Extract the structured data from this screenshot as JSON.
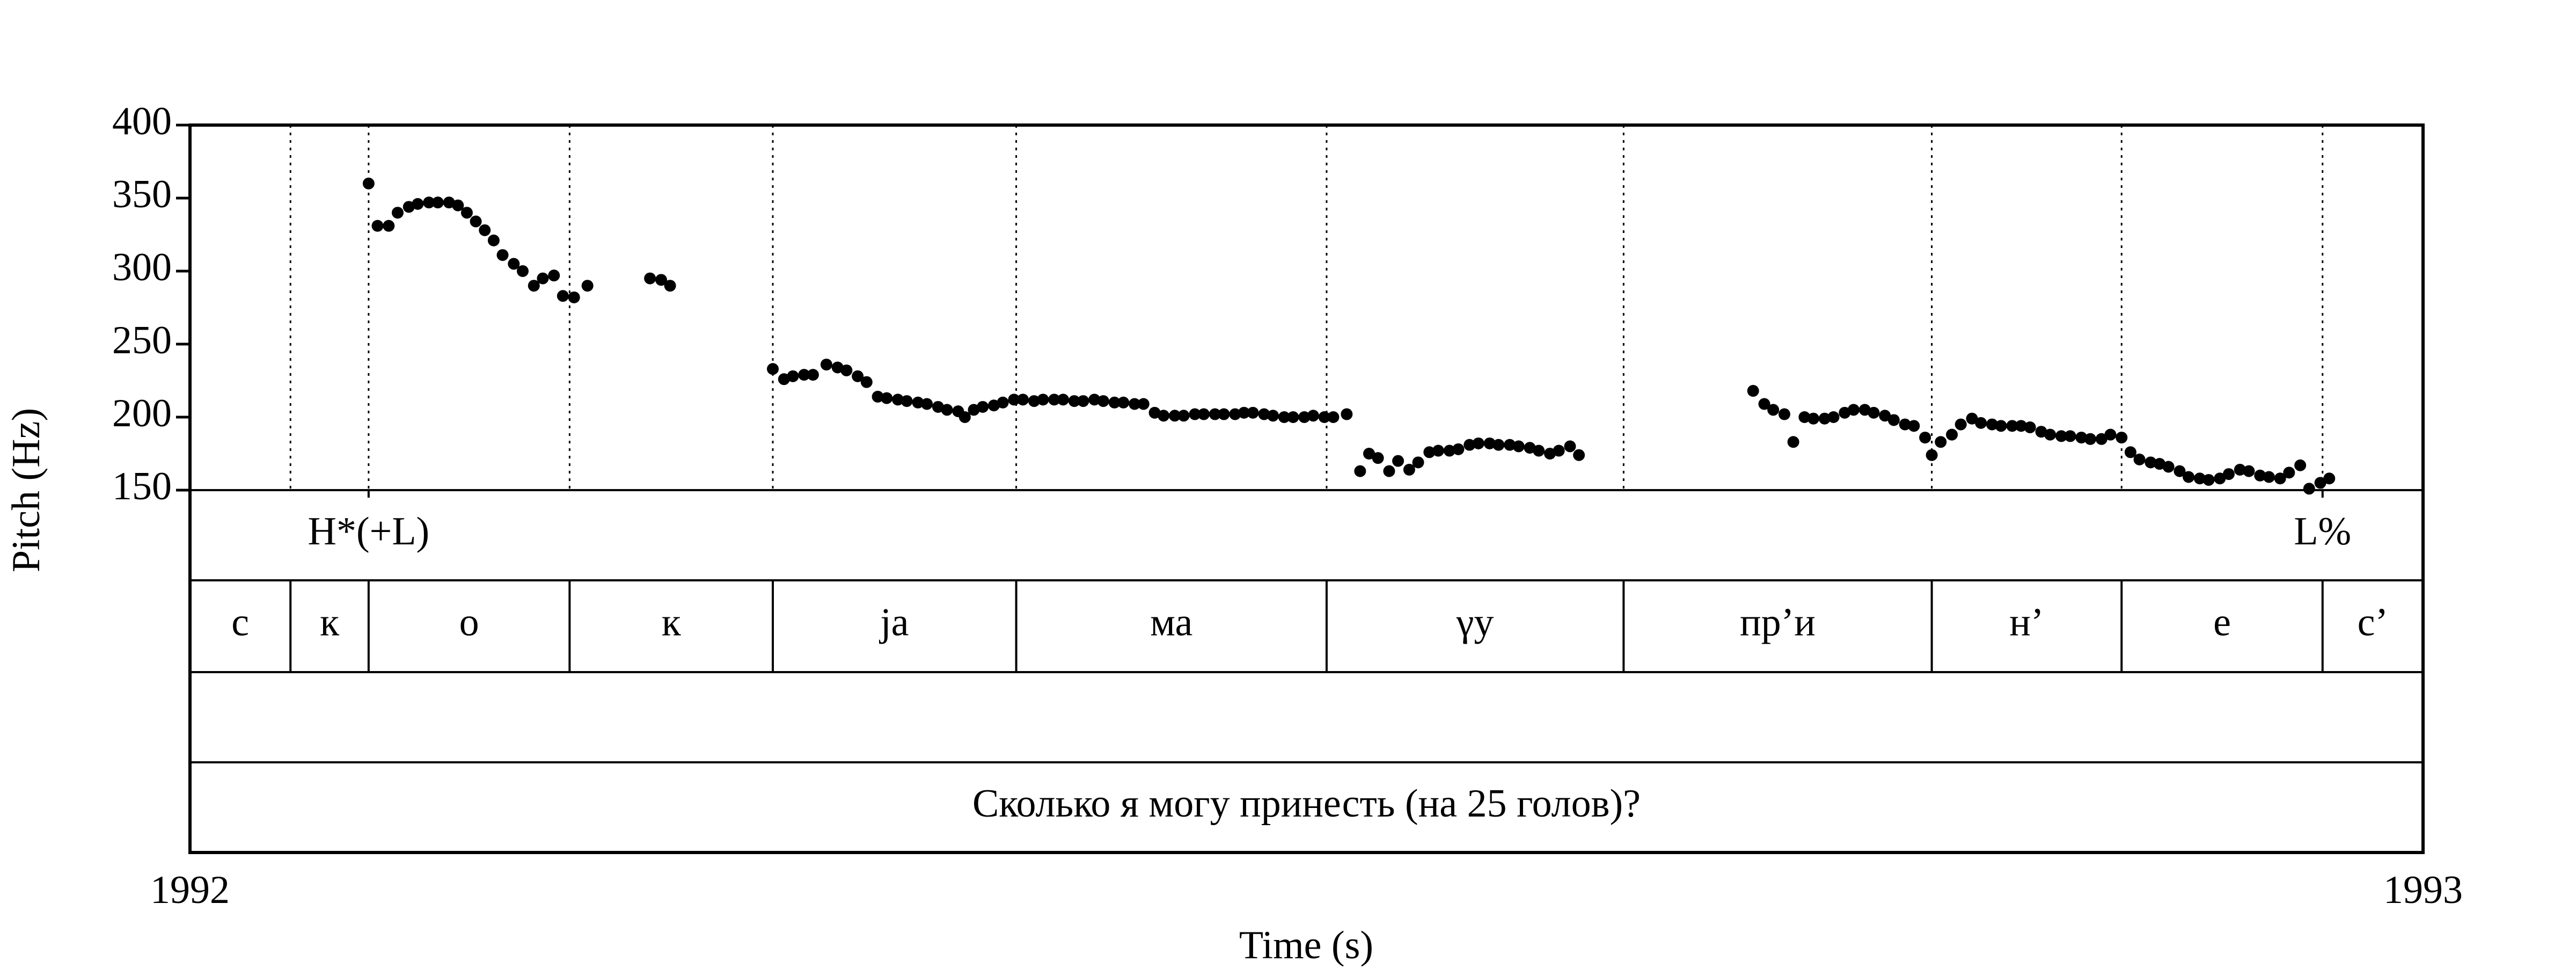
{
  "chart_data": {
    "type": "scatter",
    "xlabel": "Time (s)",
    "ylabel": "Pitch (Hz)",
    "xlim": [
      1992,
      1993
    ],
    "xticks": [
      1992,
      1993
    ],
    "ylim": [
      150,
      400
    ],
    "yticks": [
      150,
      200,
      250,
      300,
      350,
      400
    ],
    "color": "#000000",
    "x": [
      1992.08,
      1992.084,
      1992.089,
      1992.093,
      1992.098,
      1992.102,
      1992.107,
      1992.111,
      1992.116,
      1992.12,
      1992.124,
      1992.128,
      1992.132,
      1992.136,
      1992.14,
      1992.145,
      1992.149,
      1992.154,
      1992.158,
      1992.163,
      1992.167,
      1992.172,
      1992.178,
      1992.206,
      1992.211,
      1992.215,
      1992.261,
      1992.266,
      1992.27,
      1992.275,
      1992.279,
      1992.285,
      1992.29,
      1992.294,
      1992.299,
      1992.303,
      1992.308,
      1992.312,
      1992.317,
      1992.321,
      1992.326,
      1992.33,
      1992.335,
      1992.339,
      1992.344,
      1992.347,
      1992.351,
      1992.355,
      1992.36,
      1992.364,
      1992.369,
      1992.373,
      1992.378,
      1992.382,
      1992.387,
      1992.391,
      1992.396,
      1992.4,
      1992.405,
      1992.409,
      1992.414,
      1992.418,
      1992.423,
      1992.427,
      1992.432,
      1992.436,
      1992.441,
      1992.445,
      1992.45,
      1992.454,
      1992.459,
      1992.463,
      1992.468,
      1992.472,
      1992.476,
      1992.481,
      1992.485,
      1992.49,
      1992.494,
      1992.499,
      1992.503,
      1992.508,
      1992.512,
      1992.518,
      1992.524,
      1992.528,
      1992.532,
      1992.537,
      1992.541,
      1992.546,
      1992.55,
      1992.555,
      1992.559,
      1992.564,
      1992.568,
      1992.573,
      1992.577,
      1992.582,
      1992.586,
      1992.591,
      1992.595,
      1992.6,
      1992.604,
      1992.609,
      1992.613,
      1992.618,
      1992.622,
      1992.7,
      1992.705,
      1992.709,
      1992.714,
      1992.718,
      1992.723,
      1992.727,
      1992.732,
      1992.736,
      1992.741,
      1992.745,
      1992.75,
      1992.754,
      1992.759,
      1992.763,
      1992.768,
      1992.772,
      1992.777,
      1992.78,
      1992.784,
      1992.789,
      1992.793,
      1992.798,
      1992.802,
      1992.807,
      1992.811,
      1992.816,
      1992.82,
      1992.824,
      1992.829,
      1992.833,
      1992.838,
      1992.842,
      1992.847,
      1992.851,
      1992.856,
      1992.86,
      1992.865,
      1992.869,
      1992.873,
      1992.878,
      1992.882,
      1992.886,
      1992.891,
      1992.895,
      1992.9,
      1992.904,
      1992.909,
      1992.913,
      1992.918,
      1992.922,
      1992.927,
      1992.931,
      1992.936,
      1992.94,
      1992.945,
      1992.949,
      1992.954,
      1992.958
    ],
    "values": [
      360,
      331,
      331,
      340,
      344,
      346,
      347,
      347,
      347,
      345,
      340,
      334,
      328,
      321,
      311,
      305,
      300,
      290,
      295,
      297,
      283,
      282,
      290,
      295,
      294,
      290,
      233,
      226,
      228,
      229,
      229,
      236,
      234,
      232,
      228,
      224,
      214,
      213,
      212,
      211,
      210,
      209,
      207,
      205,
      204,
      200,
      205,
      207,
      208,
      210,
      212,
      212,
      211,
      212,
      212,
      212,
      211,
      211,
      212,
      211,
      210,
      210,
      209,
      209,
      203,
      201,
      201,
      201,
      202,
      202,
      202,
      202,
      202,
      203,
      203,
      202,
      201,
      200,
      200,
      200,
      201,
      200,
      200,
      202,
      163,
      175,
      172,
      163,
      170,
      164,
      169,
      176,
      177,
      177,
      178,
      181,
      182,
      182,
      181,
      181,
      180,
      179,
      177,
      175,
      177,
      180,
      174,
      218,
      209,
      205,
      202,
      183,
      200,
      199,
      199,
      200,
      203,
      205,
      205,
      203,
      201,
      198,
      195,
      194,
      186,
      174,
      183,
      188,
      195,
      199,
      196,
      195,
      194,
      194,
      194,
      193,
      190,
      188,
      187,
      187,
      186,
      185,
      185,
      188,
      186,
      176,
      171,
      169,
      168,
      166,
      163,
      159,
      158,
      157,
      158,
      161,
      164,
      163,
      160,
      159,
      158,
      162,
      167,
      151,
      155,
      158
    ],
    "tiers": [
      {
        "times": [
          1992.08,
          1992.955
        ],
        "labels": [
          "H*(+L)",
          "L%"
        ]
      },
      {
        "boundaries": [
          1992.045,
          1992.08,
          1992.17,
          1992.261,
          1992.37,
          1992.509,
          1992.642,
          1992.78,
          1992.865,
          1992.955
        ],
        "labels": [
          "с",
          "к",
          "о",
          "к",
          "jа",
          "ма",
          "γу",
          "пр’и",
          "н’",
          "е",
          "с’"
        ]
      },
      {
        "labels": [
          "Сколько я могу принесть (на 25 голов)?"
        ]
      }
    ]
  }
}
